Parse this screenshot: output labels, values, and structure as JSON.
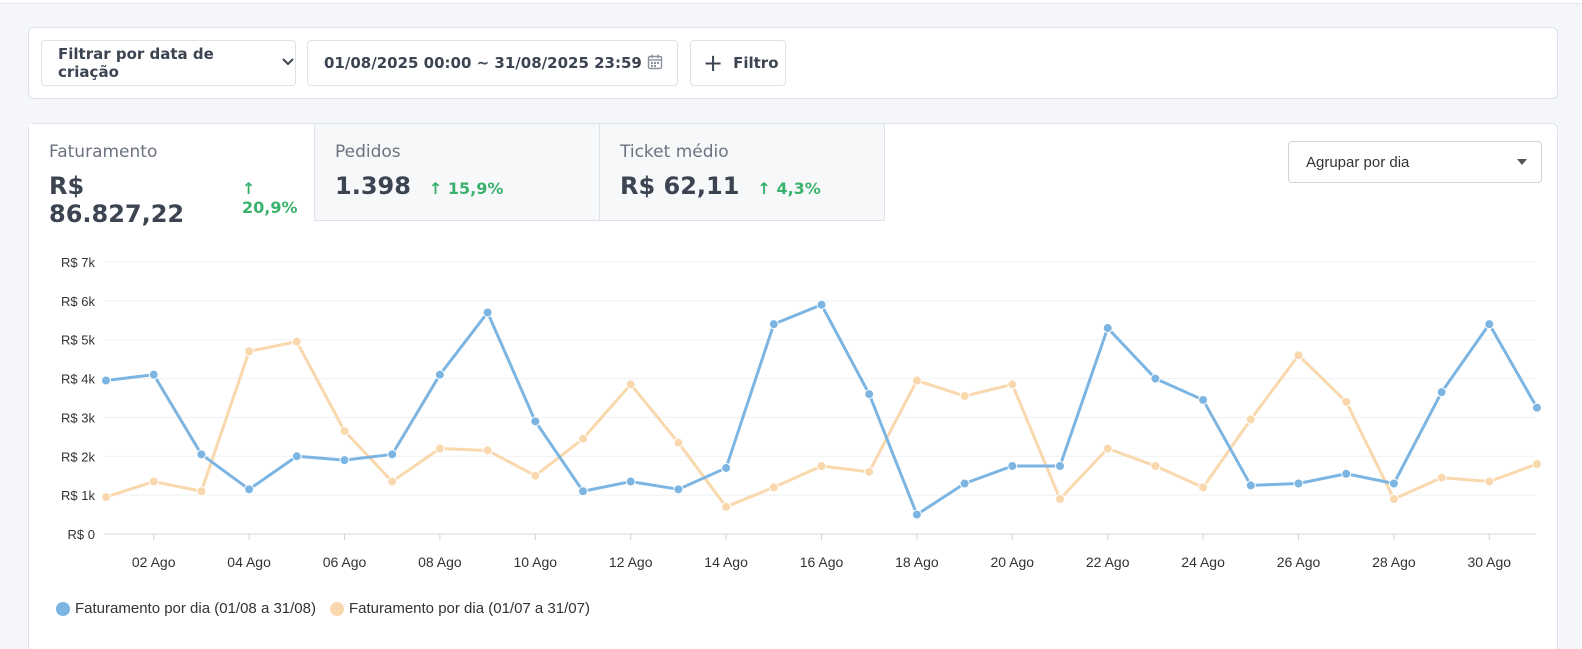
{
  "filters": {
    "date_type_label": "Filtrar por data de criação",
    "date_range": "01/08/2025 00:00 ~ 31/08/2025 23:59",
    "add_filter_label": "Filtro"
  },
  "metrics": [
    {
      "label": "Faturamento",
      "value": "R$ 86.827,22",
      "delta": "20,9%"
    },
    {
      "label": "Pedidos",
      "value": "1.398",
      "delta": "15,9%"
    },
    {
      "label": "Ticket médio",
      "value": "R$ 62,11",
      "delta": "4,3%"
    }
  ],
  "group_by": {
    "selected": "Agrupar por dia"
  },
  "colors": {
    "current": "#7cb5e2",
    "previous": "#f9d8ad",
    "positive": "#3ab26d"
  },
  "chart_data": {
    "type": "line",
    "x": [
      "01 Ago",
      "02 Ago",
      "03 Ago",
      "04 Ago",
      "05 Ago",
      "06 Ago",
      "07 Ago",
      "08 Ago",
      "09 Ago",
      "10 Ago",
      "11 Ago",
      "12 Ago",
      "13 Ago",
      "14 Ago",
      "15 Ago",
      "16 Ago",
      "17 Ago",
      "18 Ago",
      "19 Ago",
      "20 Ago",
      "21 Ago",
      "22 Ago",
      "23 Ago",
      "24 Ago",
      "25 Ago",
      "26 Ago",
      "27 Ago",
      "28 Ago",
      "29 Ago",
      "30 Ago",
      "31 Ago"
    ],
    "tick_labels": [
      "02 Ago",
      "04 Ago",
      "06 Ago",
      "08 Ago",
      "10 Ago",
      "12 Ago",
      "14 Ago",
      "16 Ago",
      "18 Ago",
      "20 Ago",
      "22 Ago",
      "24 Ago",
      "26 Ago",
      "28 Ago",
      "30 Ago"
    ],
    "y_ticks": [
      "R$ 0",
      "R$ 1k",
      "R$ 2k",
      "R$ 3k",
      "R$ 4k",
      "R$ 5k",
      "R$ 6k",
      "R$ 7k"
    ],
    "ylim": [
      0,
      7000
    ],
    "series": [
      {
        "name": "Faturamento por dia (01/08 a 31/08)",
        "color": "#7cb5e2",
        "values": [
          3950,
          4100,
          2050,
          1150,
          2000,
          1900,
          2050,
          4100,
          5700,
          2900,
          1100,
          1350,
          1150,
          1700,
          5400,
          5900,
          3600,
          500,
          1300,
          1750,
          1750,
          5300,
          4000,
          3450,
          1250,
          1300,
          1550,
          1300,
          3650,
          5400,
          3250
        ]
      },
      {
        "name": "Faturamento por dia (01/07 a 31/07)",
        "color": "#f9d8ad",
        "values": [
          950,
          1350,
          1100,
          4700,
          4950,
          2650,
          1350,
          2200,
          2150,
          1500,
          2450,
          3850,
          2350,
          700,
          1200,
          1750,
          1600,
          3950,
          3550,
          3850,
          900,
          2200,
          1750,
          1200,
          2950,
          4600,
          3400,
          900,
          1450,
          1350,
          1800
        ]
      }
    ],
    "grid": true,
    "legend": "bottom-left"
  }
}
